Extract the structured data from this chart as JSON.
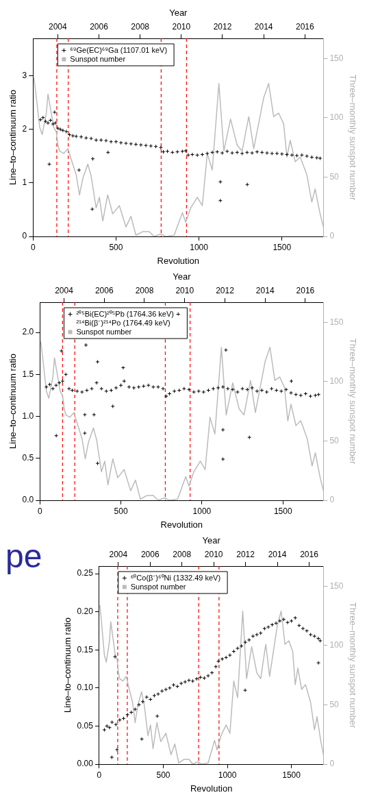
{
  "chart_data": [
    {
      "type": "scatter",
      "xlabel": "Revolution",
      "ylabel": "Line–to–continuum ratio",
      "y2label": "Three–monthly sunspot number",
      "x2label": "Year",
      "xlim": [
        0,
        1750
      ],
      "xticks": [
        0,
        500,
        1000,
        1500
      ],
      "x2lim": [
        2002.8,
        2016.9
      ],
      "x2ticks": [
        2004,
        2006,
        2008,
        2010,
        2012,
        2014,
        2016
      ],
      "ylim": [
        0,
        3.7
      ],
      "yticks": [
        0,
        1,
        2,
        3
      ],
      "y2lim": [
        0,
        167
      ],
      "y2ticks": [
        0,
        50,
        100,
        150
      ],
      "grid": false,
      "legend": "top left",
      "series": [
        {
          "name": "⁶⁹Ge(EC)⁶⁹Ga (1107.01 keV)",
          "type": "scatter",
          "marker": "cross",
          "color": "#000000",
          "x": [
            45,
            60,
            75,
            90,
            105,
            120,
            135,
            150,
            165,
            180,
            200,
            220,
            240,
            260,
            290,
            320,
            350,
            380,
            410,
            440,
            470,
            500,
            530,
            560,
            590,
            620,
            650,
            680,
            710,
            740,
            770,
            785,
            810,
            840,
            870,
            900,
            920,
            935,
            960,
            990,
            1020,
            1050,
            1080,
            1110,
            1140,
            1170,
            1200,
            1230,
            1260,
            1290,
            1320,
            1350,
            1380,
            1410,
            1440,
            1470,
            1500,
            1530,
            1560,
            1590,
            1620,
            1650,
            1680,
            1710,
            1730,
            98,
            130,
            277,
            357,
            360,
            452,
            1129,
            1129,
            1291
          ],
          "values": [
            2.18,
            2.22,
            2.15,
            2.12,
            2.17,
            2.1,
            2.12,
            2.02,
            2.0,
            1.98,
            1.96,
            1.9,
            1.88,
            1.87,
            1.86,
            1.84,
            1.83,
            1.8,
            1.8,
            1.79,
            1.77,
            1.77,
            1.75,
            1.74,
            1.73,
            1.72,
            1.71,
            1.7,
            1.69,
            1.68,
            1.66,
            1.58,
            1.59,
            1.57,
            1.58,
            1.59,
            1.6,
            1.52,
            1.53,
            1.52,
            1.53,
            1.55,
            1.57,
            1.58,
            1.56,
            1.59,
            1.56,
            1.57,
            1.55,
            1.57,
            1.56,
            1.58,
            1.57,
            1.56,
            1.55,
            1.55,
            1.54,
            1.53,
            1.52,
            1.51,
            1.52,
            1.5,
            1.48,
            1.47,
            1.46,
            1.35,
            2.32,
            1.24,
            0.51,
            1.45,
            1.57,
            1.02,
            0.67,
            0.97
          ]
        },
        {
          "name": "Sunspot number",
          "type": "line",
          "marker": "none",
          "axis": "y2",
          "color": "#bbbbbb",
          "x": [
            5,
            20,
            40,
            55,
            80,
            90,
            105,
            125,
            140,
            150,
            160,
            185,
            210,
            230,
            260,
            280,
            300,
            330,
            350,
            380,
            400,
            420,
            450,
            480,
            520,
            560,
            590,
            620,
            660,
            700,
            730,
            770,
            800,
            850,
            900,
            920,
            950,
            990,
            1020,
            1050,
            1080,
            1120,
            1150,
            1190,
            1230,
            1260,
            1300,
            1330,
            1390,
            1420,
            1450,
            1480,
            1510,
            1530,
            1550,
            1580,
            1610,
            1650,
            1680,
            1700,
            1730,
            1750
          ],
          "values": [
            134,
            117,
            92,
            86,
            104,
            120,
            108,
            92,
            88,
            77,
            72,
            70,
            74,
            65,
            52,
            35,
            49,
            61,
            51,
            24,
            33,
            13,
            35,
            19,
            26,
            8,
            17,
            1,
            4,
            4,
            0,
            2,
            0,
            1,
            20,
            12,
            24,
            33,
            26,
            70,
            56,
            129,
            72,
            99,
            77,
            72,
            101,
            74,
            117,
            129,
            101,
            104,
            95,
            67,
            81,
            63,
            67,
            52,
            29,
            40,
            19,
            8
          ]
        }
      ],
      "ref_lines": [
        {
          "axis": "x",
          "value": 143,
          "color": "#ff0000",
          "line_style": "dashed"
        },
        {
          "axis": "x",
          "value": 212,
          "color": "#ff0000",
          "line_style": "dashed"
        },
        {
          "axis": "x",
          "value": 772,
          "color": "#ff0000",
          "line_style": "dashed"
        },
        {
          "axis": "x",
          "value": 925,
          "color": "#ff0000",
          "line_style": "dashed"
        }
      ]
    },
    {
      "type": "scatter",
      "xlabel": "Revolution",
      "ylabel": "Line–to–continuum ratio",
      "y2label": "Three–monthly sunspot number",
      "x2label": "Year",
      "xlim": [
        0,
        1750
      ],
      "xticks": [
        0,
        500,
        1000,
        1500
      ],
      "x2lim": [
        2002.8,
        2016.9
      ],
      "x2ticks": [
        2004,
        2006,
        2008,
        2010,
        2012,
        2014,
        2016
      ],
      "ylim": [
        0,
        2.36
      ],
      "yticks": [
        {
          "value": 0,
          "label": "0.0"
        },
        {
          "value": 0.5,
          "label": "0.5"
        },
        {
          "value": 1,
          "label": "1.0"
        },
        {
          "value": 1.5,
          "label": "1.5"
        },
        {
          "value": 2,
          "label": "2.0"
        }
      ],
      "y2lim": [
        0,
        167
      ],
      "y2ticks": [
        0,
        50,
        100,
        150
      ],
      "grid": false,
      "legend": "top left",
      "series": [
        {
          "name": "²⁰⁵Bi(EC)²⁰⁵Pb (1764.36 keV) + ²¹⁴Bi(β⁻)²¹⁴Po (1764.49 keV)",
          "type": "scatter",
          "marker": "cross",
          "color": "#000000",
          "x": [
            40,
            60,
            80,
            100,
            120,
            140,
            160,
            180,
            200,
            230,
            260,
            290,
            320,
            350,
            380,
            410,
            440,
            470,
            500,
            520,
            550,
            580,
            610,
            640,
            670,
            700,
            730,
            760,
            780,
            800,
            830,
            860,
            890,
            920,
            950,
            980,
            1010,
            1040,
            1070,
            1100,
            1130,
            1160,
            1190,
            1220,
            1250,
            1280,
            1310,
            1340,
            1370,
            1400,
            1430,
            1460,
            1490,
            1520,
            1550,
            1580,
            1610,
            1640,
            1670,
            1700,
            1720,
            133,
            284,
            356,
            514,
            1148,
            101,
            450,
            277,
            334,
            277,
            356,
            1130,
            1130,
            1293,
            1552
          ],
          "values": [
            1.35,
            1.38,
            1.33,
            1.37,
            1.4,
            1.42,
            1.5,
            1.33,
            1.31,
            1.3,
            1.29,
            1.31,
            1.33,
            1.4,
            1.33,
            1.3,
            1.31,
            1.34,
            1.37,
            1.42,
            1.35,
            1.34,
            1.35,
            1.36,
            1.37,
            1.35,
            1.35,
            1.33,
            1.24,
            1.27,
            1.3,
            1.31,
            1.33,
            1.32,
            1.29,
            1.3,
            1.29,
            1.31,
            1.33,
            1.34,
            1.35,
            1.33,
            1.32,
            1.29,
            1.33,
            1.32,
            1.34,
            1.3,
            1.31,
            1.29,
            1.33,
            1.31,
            1.3,
            1.32,
            1.28,
            1.26,
            1.25,
            1.27,
            1.24,
            1.25,
            1.26,
            1.78,
            1.85,
            1.65,
            1.58,
            1.79,
            0.77,
            1.12,
            1.02,
            1.02,
            0.8,
            0.44,
            0.84,
            0.49,
            0.75,
            1.42
          ]
        },
        {
          "name": "Sunspot number",
          "type": "line",
          "marker": "none",
          "axis": "y2",
          "color": "#bbbbbb",
          "x": [
            5,
            20,
            40,
            55,
            80,
            90,
            105,
            125,
            140,
            150,
            160,
            185,
            210,
            230,
            260,
            280,
            300,
            330,
            350,
            380,
            400,
            420,
            450,
            480,
            520,
            560,
            590,
            620,
            660,
            700,
            730,
            770,
            800,
            850,
            900,
            920,
            950,
            990,
            1020,
            1050,
            1080,
            1120,
            1150,
            1190,
            1230,
            1260,
            1300,
            1330,
            1390,
            1420,
            1450,
            1480,
            1510,
            1530,
            1550,
            1580,
            1610,
            1650,
            1680,
            1700,
            1730,
            1750
          ],
          "values": [
            134,
            117,
            92,
            86,
            104,
            120,
            108,
            92,
            88,
            77,
            72,
            70,
            74,
            65,
            52,
            35,
            49,
            61,
            51,
            24,
            33,
            13,
            35,
            19,
            26,
            8,
            17,
            1,
            4,
            4,
            0,
            2,
            0,
            1,
            20,
            12,
            24,
            33,
            26,
            70,
            56,
            129,
            72,
            99,
            77,
            72,
            101,
            74,
            117,
            129,
            101,
            104,
            95,
            67,
            81,
            63,
            67,
            52,
            29,
            40,
            19,
            8
          ]
        }
      ],
      "ref_lines": [
        {
          "axis": "x",
          "value": 140,
          "color": "#ff0000",
          "line_style": "dashed"
        },
        {
          "axis": "x",
          "value": 215,
          "color": "#ff0000",
          "line_style": "dashed"
        },
        {
          "axis": "x",
          "value": 774,
          "color": "#ff0000",
          "line_style": "dashed"
        },
        {
          "axis": "x",
          "value": 927,
          "color": "#ff0000",
          "line_style": "dashed"
        }
      ]
    },
    {
      "type": "scatter",
      "xlabel": "Revolution",
      "ylabel": "Line–to–continuum ratio",
      "y2label": "Three–monthly sunspot number",
      "x2label": "Year",
      "xlim": [
        0,
        1750
      ],
      "xticks": [
        0,
        500,
        1000,
        1500
      ],
      "x2lim": [
        2002.8,
        2016.9
      ],
      "x2ticks": [
        2004,
        2006,
        2008,
        2010,
        2012,
        2014,
        2016
      ],
      "ylim": [
        0,
        0.26
      ],
      "yticks": [
        {
          "value": 0,
          "label": "0.00"
        },
        {
          "value": 0.05,
          "label": "0.05"
        },
        {
          "value": 0.1,
          "label": "0.10"
        },
        {
          "value": 0.15,
          "label": "0.15"
        },
        {
          "value": 0.2,
          "label": "0.20"
        },
        {
          "value": 0.25,
          "label": "0.25"
        }
      ],
      "y2lim": [
        0,
        167
      ],
      "y2ticks": [
        0,
        50,
        100,
        150
      ],
      "grid": false,
      "legend": "top left",
      "annotations": [
        "pe"
      ],
      "series": [
        {
          "name": "⁶⁰Co(β⁻)⁶⁰Ni (1332.49 keV)",
          "type": "scatter",
          "marker": "cross",
          "color": "#000000",
          "x": [
            40,
            60,
            80,
            100,
            130,
            160,
            190,
            220,
            250,
            280,
            310,
            340,
            370,
            400,
            430,
            460,
            490,
            520,
            550,
            580,
            610,
            640,
            670,
            700,
            730,
            760,
            790,
            820,
            850,
            880,
            910,
            930,
            960,
            990,
            1020,
            1050,
            1080,
            1110,
            1140,
            1170,
            1200,
            1230,
            1260,
            1290,
            1320,
            1350,
            1380,
            1410,
            1440,
            1470,
            1500,
            1530,
            1560,
            1590,
            1620,
            1650,
            1680,
            1710,
            1725,
            98,
            139,
            332,
            1711,
            1139,
            123,
            453
          ],
          "values": [
            0.045,
            0.05,
            0.048,
            0.055,
            0.052,
            0.058,
            0.06,
            0.065,
            0.068,
            0.072,
            0.078,
            0.082,
            0.088,
            0.085,
            0.09,
            0.092,
            0.096,
            0.098,
            0.1,
            0.104,
            0.102,
            0.106,
            0.108,
            0.11,
            0.109,
            0.112,
            0.114,
            0.113,
            0.116,
            0.12,
            0.128,
            0.135,
            0.138,
            0.14,
            0.143,
            0.148,
            0.152,
            0.155,
            0.16,
            0.163,
            0.168,
            0.17,
            0.172,
            0.178,
            0.18,
            0.183,
            0.185,
            0.188,
            0.19,
            0.186,
            0.188,
            0.192,
            0.182,
            0.178,
            0.175,
            0.17,
            0.168,
            0.165,
            0.162,
            0.009,
            0.019,
            0.033,
            0.133,
            0.097,
            0.141,
            0.063
          ]
        },
        {
          "name": "Sunspot number",
          "type": "line",
          "marker": "none",
          "axis": "y2",
          "color": "#bbbbbb",
          "x": [
            5,
            20,
            40,
            55,
            80,
            90,
            105,
            125,
            140,
            150,
            160,
            185,
            210,
            230,
            260,
            280,
            300,
            330,
            350,
            380,
            400,
            420,
            450,
            480,
            520,
            560,
            590,
            620,
            660,
            700,
            730,
            770,
            800,
            850,
            900,
            920,
            950,
            990,
            1020,
            1050,
            1080,
            1120,
            1150,
            1190,
            1230,
            1260,
            1300,
            1330,
            1390,
            1420,
            1450,
            1480,
            1510,
            1530,
            1550,
            1580,
            1610,
            1650,
            1680,
            1700,
            1730,
            1750
          ],
          "values": [
            134,
            117,
            92,
            86,
            104,
            120,
            108,
            92,
            88,
            77,
            72,
            70,
            74,
            65,
            52,
            35,
            49,
            61,
            51,
            24,
            33,
            13,
            35,
            19,
            26,
            8,
            17,
            1,
            4,
            4,
            0,
            2,
            0,
            1,
            20,
            12,
            24,
            33,
            26,
            70,
            56,
            129,
            72,
            99,
            77,
            72,
            101,
            74,
            117,
            129,
            101,
            104,
            95,
            67,
            81,
            63,
            67,
            52,
            29,
            40,
            19,
            8
          ]
        }
      ],
      "ref_lines": [
        {
          "axis": "x",
          "value": 144,
          "color": "#ff0000",
          "line_style": "dashed"
        },
        {
          "axis": "x",
          "value": 219,
          "color": "#ff0000",
          "line_style": "dashed"
        },
        {
          "axis": "x",
          "value": 776,
          "color": "#ff0000",
          "line_style": "dashed"
        },
        {
          "axis": "x",
          "value": 935,
          "color": "#ff0000",
          "line_style": "dashed"
        }
      ]
    }
  ]
}
